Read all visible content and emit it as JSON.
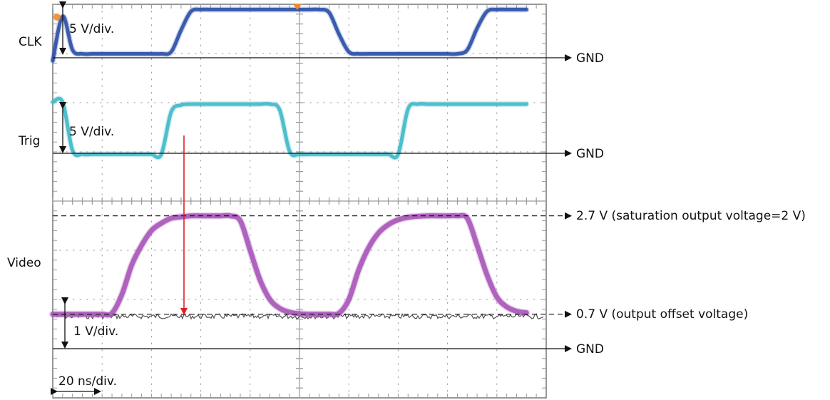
{
  "chart_data": {
    "type": "line",
    "title": "",
    "xlabel": "",
    "ylabel": "",
    "grid": true,
    "channels": [
      {
        "name": "CLK",
        "scale_label": "5 V/div.",
        "gnd_label": "GND",
        "color": "#2b4ea8",
        "points": [
          [
            0,
            -0.3
          ],
          [
            1,
            4.2
          ],
          [
            2,
            0.8
          ],
          [
            3,
            0.4
          ],
          [
            4,
            0.4
          ],
          [
            5,
            0.4
          ],
          [
            6,
            0.4
          ],
          [
            7,
            0.4
          ],
          [
            8,
            0.4
          ],
          [
            9,
            0.4
          ],
          [
            10,
            0.4
          ],
          [
            11,
            0.4
          ],
          [
            12,
            0.6
          ],
          [
            13,
            2.8
          ],
          [
            14,
            4.7
          ],
          [
            15,
            4.9
          ],
          [
            16,
            4.9
          ],
          [
            17,
            4.9
          ],
          [
            18,
            4.9
          ],
          [
            19,
            4.9
          ],
          [
            20,
            4.9
          ],
          [
            21,
            4.9
          ],
          [
            22,
            4.9
          ],
          [
            23,
            4.9
          ],
          [
            24,
            4.9
          ],
          [
            25,
            4.9
          ],
          [
            26,
            4.9
          ],
          [
            27,
            4.9
          ],
          [
            28,
            4.6
          ],
          [
            29,
            2.4
          ],
          [
            30,
            0.6
          ],
          [
            31,
            0.4
          ],
          [
            32,
            0.4
          ],
          [
            33,
            0.4
          ],
          [
            34,
            0.4
          ],
          [
            35,
            0.4
          ],
          [
            36,
            0.4
          ],
          [
            37,
            0.4
          ],
          [
            38,
            0.4
          ],
          [
            39,
            0.4
          ],
          [
            40,
            0.4
          ],
          [
            41,
            0.4
          ],
          [
            42,
            0.8
          ],
          [
            43,
            3.0
          ],
          [
            44,
            4.7
          ],
          [
            45,
            4.9
          ],
          [
            46,
            4.9
          ],
          [
            47,
            4.9
          ],
          [
            48,
            4.9
          ]
        ]
      },
      {
        "name": "Trig",
        "scale_label": "5 V/div.",
        "gnd_label": "GND",
        "color": "#3fb8c9",
        "points": [
          [
            0,
            5.2
          ],
          [
            1,
            5.2
          ],
          [
            2,
            0.3
          ],
          [
            3,
            -0.1
          ],
          [
            4,
            -0.1
          ],
          [
            5,
            -0.1
          ],
          [
            6,
            -0.1
          ],
          [
            7,
            -0.1
          ],
          [
            8,
            -0.1
          ],
          [
            9,
            -0.1
          ],
          [
            10,
            -0.1
          ],
          [
            11,
            -0.1
          ],
          [
            12,
            4.2
          ],
          [
            13,
            4.9
          ],
          [
            14,
            5.0
          ],
          [
            15,
            5.0
          ],
          [
            16,
            5.0
          ],
          [
            17,
            5.0
          ],
          [
            18,
            5.0
          ],
          [
            19,
            5.0
          ],
          [
            20,
            5.0
          ],
          [
            21,
            5.0
          ],
          [
            22,
            5.0
          ],
          [
            23,
            4.4
          ],
          [
            24,
            0.2
          ],
          [
            25,
            -0.1
          ],
          [
            26,
            -0.1
          ],
          [
            27,
            -0.1
          ],
          [
            28,
            -0.1
          ],
          [
            29,
            -0.1
          ],
          [
            30,
            -0.1
          ],
          [
            31,
            -0.1
          ],
          [
            32,
            -0.1
          ],
          [
            33,
            -0.1
          ],
          [
            34,
            -0.1
          ],
          [
            35,
            -0.1
          ],
          [
            36,
            4.5
          ],
          [
            37,
            5.0
          ],
          [
            38,
            5.0
          ],
          [
            39,
            5.0
          ],
          [
            40,
            5.0
          ],
          [
            41,
            5.0
          ],
          [
            42,
            5.0
          ],
          [
            43,
            5.0
          ],
          [
            44,
            5.0
          ],
          [
            45,
            5.0
          ],
          [
            46,
            5.0
          ],
          [
            47,
            5.0
          ],
          [
            48,
            5.0
          ]
        ]
      },
      {
        "name": "Video",
        "scale_label": "1 V/div.",
        "gnd_label": "GND",
        "color": "#a857b8",
        "points": [
          [
            0,
            0.7
          ],
          [
            1,
            0.7
          ],
          [
            2,
            0.7
          ],
          [
            3,
            0.7
          ],
          [
            4,
            0.7
          ],
          [
            5,
            0.7
          ],
          [
            6,
            0.72
          ],
          [
            7,
            1.1
          ],
          [
            8,
            1.7
          ],
          [
            9,
            2.1
          ],
          [
            10,
            2.4
          ],
          [
            11,
            2.55
          ],
          [
            12,
            2.65
          ],
          [
            13,
            2.68
          ],
          [
            14,
            2.7
          ],
          [
            15,
            2.7
          ],
          [
            16,
            2.7
          ],
          [
            17,
            2.7
          ],
          [
            18,
            2.7
          ],
          [
            19,
            2.6
          ],
          [
            20,
            2.0
          ],
          [
            21,
            1.4
          ],
          [
            22,
            1.0
          ],
          [
            23,
            0.82
          ],
          [
            24,
            0.74
          ],
          [
            25,
            0.71
          ],
          [
            26,
            0.7
          ],
          [
            27,
            0.7
          ],
          [
            28,
            0.7
          ],
          [
            29,
            0.72
          ],
          [
            30,
            1.0
          ],
          [
            31,
            1.6
          ],
          [
            32,
            2.05
          ],
          [
            33,
            2.35
          ],
          [
            34,
            2.52
          ],
          [
            35,
            2.62
          ],
          [
            36,
            2.67
          ],
          [
            37,
            2.69
          ],
          [
            38,
            2.7
          ],
          [
            39,
            2.7
          ],
          [
            40,
            2.7
          ],
          [
            41,
            2.7
          ],
          [
            42,
            2.65
          ],
          [
            43,
            2.1
          ],
          [
            44,
            1.5
          ],
          [
            45,
            1.05
          ],
          [
            46,
            0.85
          ],
          [
            47,
            0.76
          ],
          [
            48,
            0.73
          ]
        ]
      }
    ],
    "noise_baseline_level_V": 0.7,
    "annotations": {
      "saturation": "2.7 V (saturation output voltage=2 V)",
      "offset": "0.7 V (output offset voltage)",
      "timebase": "20 ns/div."
    },
    "colors": {
      "grid": "#9a9a9a",
      "frame": "#777777",
      "arrow": "#e02020",
      "baseline_noise": "#333333",
      "marker": "#ee8a2a"
    }
  }
}
